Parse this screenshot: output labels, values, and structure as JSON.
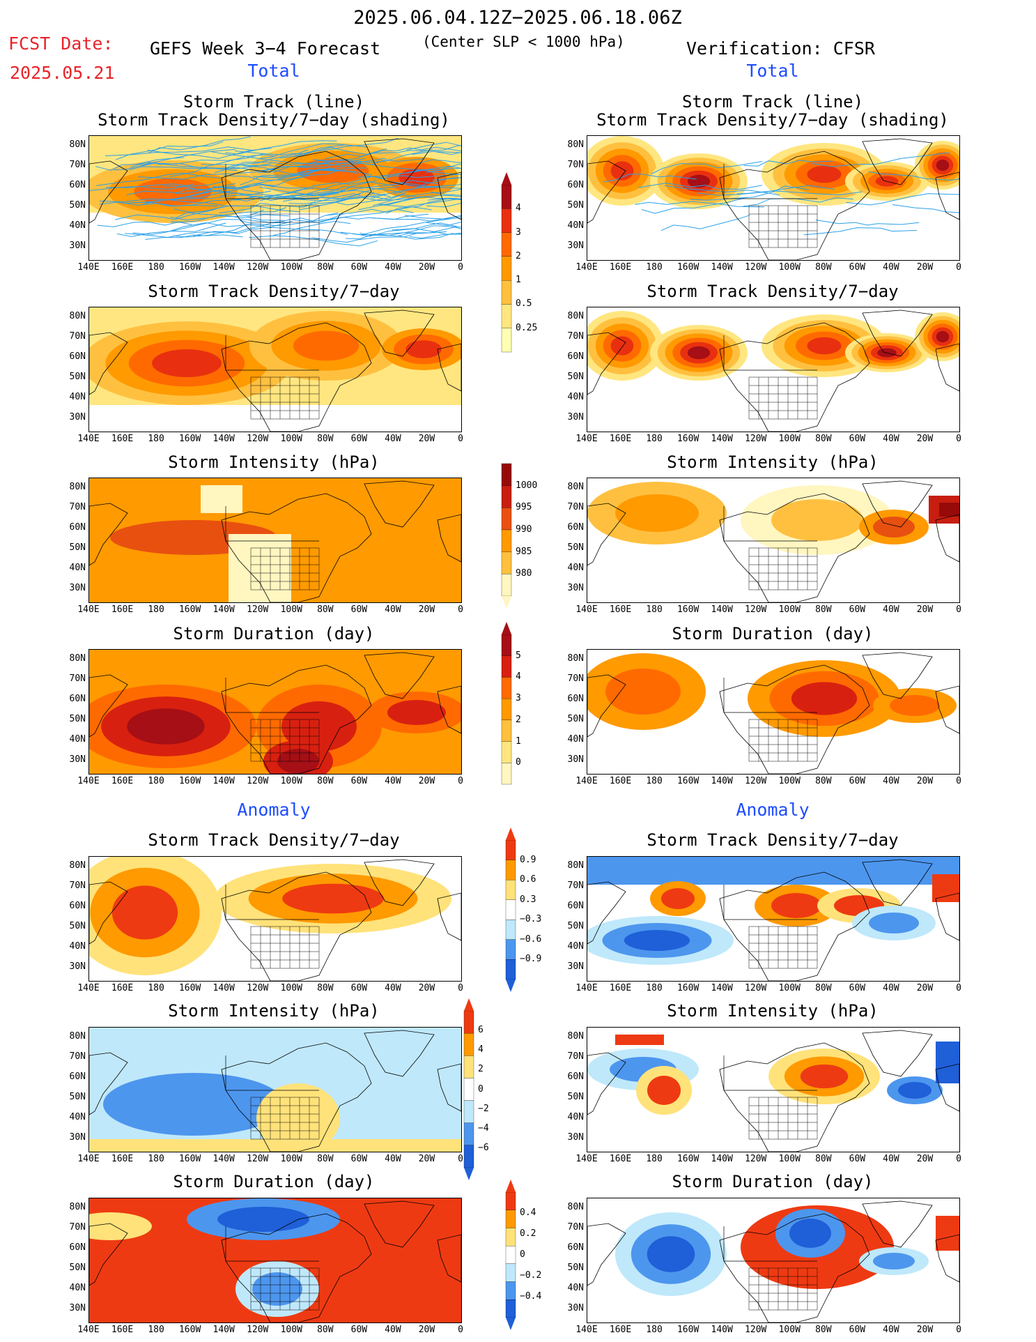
{
  "header": {
    "period": "2025.06.04.12Z−2025.06.18.06Z",
    "fcst_label": "FCST Date:",
    "fcst_date": "2025.05.21",
    "left_title": "GEFS Week 3−4 Forecast",
    "criterion": "(Center SLP < 1000 hPa)",
    "right_title": "Verification: CFSR",
    "total_label": "Total",
    "anomaly_label": "Anomaly"
  },
  "axes": {
    "lat_ticks": [
      "80N",
      "70N",
      "60N",
      "50N",
      "40N",
      "30N"
    ],
    "lon_ticks": [
      "140E",
      "160E",
      "180",
      "160W",
      "140W",
      "120W",
      "100W",
      "80W",
      "60W",
      "40W",
      "20W",
      "0"
    ]
  },
  "panel_titles": {
    "track_line": "Storm Track (line)",
    "track_shading": "Storm Track Density/7−day (shading)",
    "density": "Storm Track Density/7−day",
    "intensity": "Storm Intensity (hPa)",
    "duration": "Storm Duration (day)"
  },
  "colorbars": {
    "density_total": {
      "labels": [
        "4",
        "3",
        "2",
        "1",
        "0.5",
        "0.25"
      ],
      "colors": [
        "#ffffb4",
        "#ffe680",
        "#ffc040",
        "#ff9a00",
        "#ff6a00",
        "#e83010",
        "#a50f15"
      ]
    },
    "intensity_total": {
      "labels": [
        "1000",
        "995",
        "990",
        "985",
        "980"
      ],
      "colors": [
        "#fff6c0",
        "#ffc040",
        "#ff9a00",
        "#e85010",
        "#c81e10",
        "#960a0a"
      ]
    },
    "duration_total": {
      "labels": [
        "5",
        "4",
        "3",
        "2",
        "1",
        "0"
      ],
      "colors": [
        "#fff6c0",
        "#ffe680",
        "#ffc040",
        "#ff9a00",
        "#ff6a00",
        "#d82010",
        "#a50f15"
      ]
    },
    "density_anom": {
      "labels": [
        "0.9",
        "0.6",
        "0.3",
        "−0.3",
        "−0.6",
        "−0.9"
      ]
    },
    "intensity_anom": {
      "labels": [
        "6",
        "4",
        "2",
        "0",
        "−2",
        "−4",
        "−6"
      ]
    },
    "duration_anom": {
      "labels": [
        "0.4",
        "0.2",
        "0",
        "−0.2",
        "−0.4"
      ]
    },
    "anom_colors": [
      "#1f5fd8",
      "#4d96ee",
      "#bfe8fb",
      "#ffffff",
      "#ffe27a",
      "#ff9a00",
      "#ee3a12"
    ]
  },
  "chart_data": {
    "type": "heatmap",
    "domain": {
      "lon_range": [
        "140E",
        "0"
      ],
      "lat_range": [
        "25N",
        "85N"
      ]
    },
    "panels": [
      {
        "column": "GEFS Week 3−4 Forecast",
        "section": "Total",
        "field": "Storm Track (line) + Storm Track Density/7−day (shading)",
        "max_level": "3−4"
      },
      {
        "column": "Verification: CFSR",
        "section": "Total",
        "field": "Storm Track (line) + Storm Track Density/7−day (shading)",
        "max_level": ">4"
      },
      {
        "column": "GEFS Week 3−4 Forecast",
        "section": "Total",
        "field": "Storm Track Density/7−day",
        "max_level": "3−4"
      },
      {
        "column": "Verification: CFSR",
        "section": "Total",
        "field": "Storm Track Density/7−day",
        "max_level": ">4"
      },
      {
        "column": "GEFS Week 3−4 Forecast",
        "section": "Total",
        "field": "Storm Intensity (hPa)",
        "range": [
          990,
          1000
        ]
      },
      {
        "column": "Verification: CFSR",
        "section": "Total",
        "field": "Storm Intensity (hPa)",
        "range": [
          980,
          1000
        ]
      },
      {
        "column": "GEFS Week 3−4 Forecast",
        "section": "Total",
        "field": "Storm Duration (day)",
        "range": [
          2,
          5
        ]
      },
      {
        "column": "Verification: CFSR",
        "section": "Total",
        "field": "Storm Duration (day)",
        "range": [
          2,
          4
        ]
      },
      {
        "column": "GEFS Week 3−4 Forecast",
        "section": "Anomaly",
        "field": "Storm Track Density/7−day",
        "range": [
          0,
          0.9
        ]
      },
      {
        "column": "Verification: CFSR",
        "section": "Anomaly",
        "field": "Storm Track Density/7−day",
        "range": [
          -0.9,
          0.9
        ]
      },
      {
        "column": "GEFS Week 3−4 Forecast",
        "section": "Anomaly",
        "field": "Storm Intensity (hPa)",
        "range": [
          -4,
          2
        ]
      },
      {
        "column": "Verification: CFSR",
        "section": "Anomaly",
        "field": "Storm Intensity (hPa)",
        "range": [
          -6,
          6
        ]
      },
      {
        "column": "GEFS Week 3−4 Forecast",
        "section": "Anomaly",
        "field": "Storm Duration (day)",
        "range": [
          -0.4,
          0.4
        ]
      },
      {
        "column": "Verification: CFSR",
        "section": "Anomaly",
        "field": "Storm Duration (day)",
        "range": [
          -0.4,
          0.4
        ]
      }
    ]
  }
}
